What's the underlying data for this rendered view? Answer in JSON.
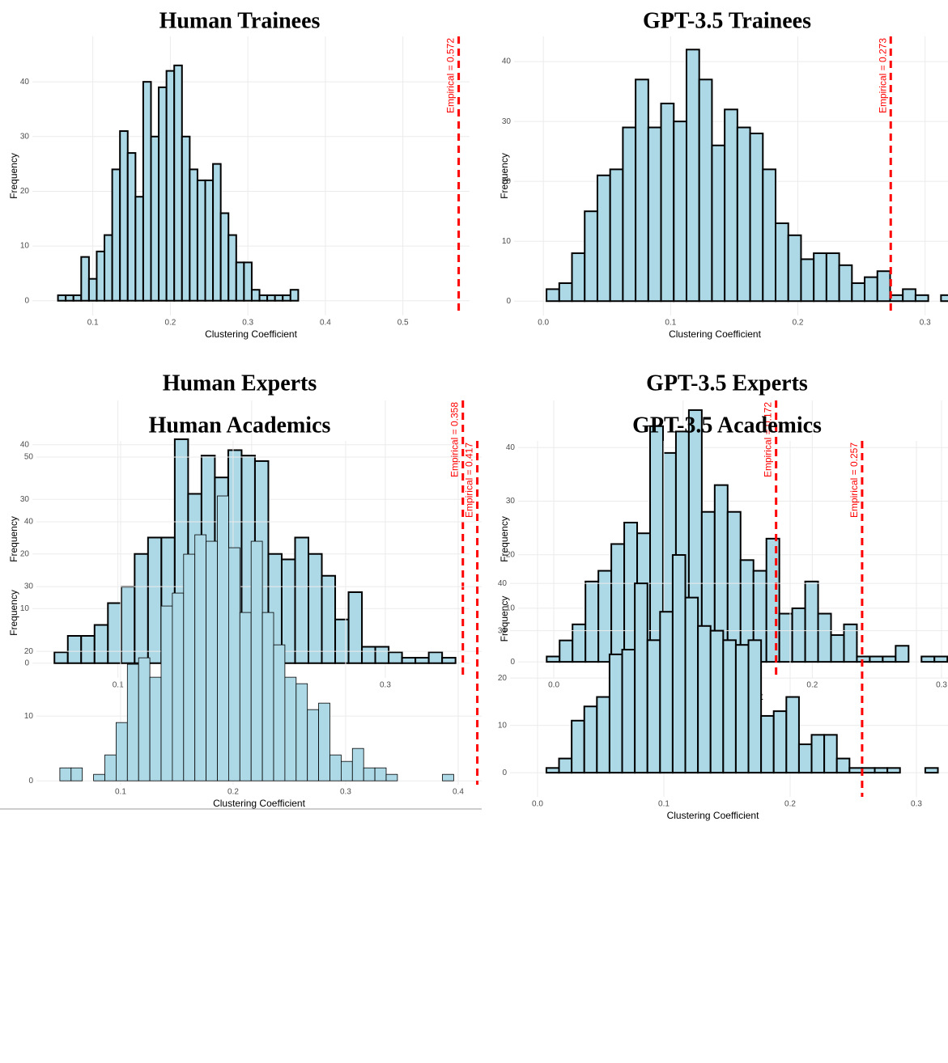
{
  "chart_data": [
    {
      "type": "histogram",
      "title": "Human Trainees",
      "xlabel": "Clustering Coefficient",
      "ylabel": "Frequency",
      "bins": [
        0.055,
        0.065,
        0.075,
        0.085,
        0.095,
        0.105,
        0.115,
        0.125,
        0.135,
        0.145,
        0.155,
        0.165,
        0.175,
        0.185,
        0.195,
        0.205,
        0.215,
        0.225,
        0.235,
        0.245,
        0.255,
        0.265,
        0.275,
        0.285,
        0.295,
        0.305,
        0.315,
        0.325,
        0.335,
        0.345,
        0.355,
        0.365
      ],
      "values": [
        1,
        1,
        1,
        8,
        4,
        9,
        12,
        24,
        31,
        27,
        19,
        40,
        30,
        39,
        42,
        43,
        30,
        24,
        22,
        22,
        25,
        16,
        12,
        7,
        7,
        2,
        1,
        1,
        1,
        1,
        2
      ],
      "color": "#add8e6",
      "edge_color": "#000000",
      "xlim": [
        0.022,
        0.586
      ],
      "ylim": [
        -2.7,
        48.3
      ],
      "xticks": [
        0.1,
        0.2,
        0.3,
        0.4,
        0.5
      ],
      "yticks": [
        0,
        10,
        20,
        30,
        40
      ],
      "grid": true,
      "empirical": {
        "value": 0.572,
        "label": "Empirical = 0.572",
        "color": "#ff0000"
      }
    },
    {
      "type": "histogram",
      "title": "GPT-3.5 Trainees",
      "xlabel": "Clustering Coefficient",
      "ylabel": "Frequency",
      "bins": [
        0.0025,
        0.0125,
        0.0225,
        0.0325,
        0.0425,
        0.0525,
        0.0625,
        0.0725,
        0.0825,
        0.0925,
        0.1025,
        0.1125,
        0.1225,
        0.1325,
        0.1425,
        0.1525,
        0.1625,
        0.1725,
        0.1825,
        0.1925,
        0.2025,
        0.2125,
        0.2225,
        0.2325,
        0.2425,
        0.2525,
        0.2625,
        0.2725,
        0.2825,
        0.2925,
        0.3025,
        0.3125,
        0.3225
      ],
      "values": [
        2,
        3,
        8,
        15,
        21,
        22,
        29,
        37,
        29,
        33,
        30,
        42,
        37,
        26,
        32,
        29,
        28,
        22,
        13,
        11,
        7,
        8,
        8,
        6,
        3,
        4,
        5,
        1,
        2,
        1,
        0,
        1
      ],
      "color": "#add8e6",
      "edge_color": "#000000",
      "xlim": [
        -0.023,
        0.318
      ],
      "ylim": [
        -2.4,
        44.2
      ],
      "xticks": [
        {
          "value": 0,
          "label": "0.0"
        },
        0.1,
        0.2,
        0.3
      ],
      "yticks": [
        0,
        10,
        20,
        30,
        40
      ],
      "grid": true,
      "empirical": {
        "value": 0.273,
        "label": "Empirical = 0.273",
        "color": "#ff0000"
      }
    },
    {
      "type": "histogram",
      "title": "Human Experts",
      "xlabel": "Clustering Coefficient",
      "ylabel": "Frequency",
      "bins": [
        0.0525,
        0.0625,
        0.0725,
        0.0825,
        0.0925,
        0.1025,
        0.1125,
        0.1225,
        0.1325,
        0.1425,
        0.1525,
        0.1625,
        0.1725,
        0.1825,
        0.1925,
        0.2025,
        0.2125,
        0.2225,
        0.2325,
        0.2425,
        0.2525,
        0.2625,
        0.2725,
        0.2825,
        0.2925,
        0.3025,
        0.3125,
        0.3225,
        0.3325,
        0.3425,
        0.3525
      ],
      "values": [
        2,
        5,
        5,
        7,
        11,
        14,
        20,
        23,
        23,
        41,
        31,
        38,
        34,
        39,
        38,
        37,
        20,
        19,
        23,
        20,
        16,
        8,
        13,
        3,
        3,
        2,
        1,
        1,
        2,
        1
      ],
      "color": "#add8e6",
      "edge_color": "#000000",
      "xlim": [
        0.036,
        0.363
      ],
      "ylim": [
        -2.7,
        48.1
      ],
      "xticks": [
        0.1,
        0.2,
        0.3
      ],
      "yticks": [
        0,
        10,
        20,
        30,
        40
      ],
      "grid": true,
      "empirical": {
        "value": 0.358,
        "label": "Empirical = 0.358",
        "color": "#ff0000"
      }
    },
    {
      "type": "histogram",
      "title": "GPT-3.5 Experts",
      "xlabel": "Clustering Coefficient",
      "ylabel": "Frequency",
      "bins": [
        -0.0055,
        0.0045,
        0.0145,
        0.0245,
        0.0345,
        0.0445,
        0.0545,
        0.0645,
        0.0745,
        0.0845,
        0.0945,
        0.1045,
        0.1145,
        0.1245,
        0.1345,
        0.1445,
        0.1545,
        0.1645,
        0.1745,
        0.1845,
        0.1945,
        0.2045,
        0.2145,
        0.2245,
        0.2345,
        0.2445,
        0.2545,
        0.2645,
        0.2745,
        0.2845,
        0.2945,
        0.3045
      ],
      "values": [
        1,
        4,
        7,
        15,
        17,
        22,
        26,
        24,
        44,
        39,
        43,
        47,
        28,
        33,
        28,
        19,
        17,
        23,
        9,
        10,
        15,
        9,
        5,
        7,
        1,
        1,
        1,
        3,
        0,
        1,
        1
      ],
      "color": "#add8e6",
      "edge_color": "#000000",
      "xlim": [
        -0.0276,
        0.305
      ],
      "ylim": [
        -3,
        48.8
      ],
      "xticks": [
        {
          "value": 0,
          "label": "0.0"
        },
        0.1,
        0.2,
        0.3
      ],
      "yticks": [
        0,
        10,
        20,
        30,
        40
      ],
      "grid": true,
      "empirical": {
        "value": 0.172,
        "label": "Empirical = 0.172",
        "color": "#ff0000"
      }
    },
    {
      "type": "histogram",
      "title": "Human Academics",
      "xlabel": "Clustering Coefficient",
      "ylabel": "Frequency",
      "bins": [
        0.046,
        0.056,
        0.066,
        0.076,
        0.086,
        0.096,
        0.106,
        0.116,
        0.126,
        0.136,
        0.146,
        0.156,
        0.166,
        0.176,
        0.186,
        0.196,
        0.206,
        0.216,
        0.226,
        0.236,
        0.246,
        0.256,
        0.266,
        0.276,
        0.286,
        0.296,
        0.306,
        0.316,
        0.326,
        0.336,
        0.346,
        0.356,
        0.366,
        0.376,
        0.386,
        0.396
      ],
      "values": [
        2,
        2,
        0,
        1,
        4,
        9,
        18,
        19,
        16,
        27,
        29,
        35,
        38,
        37,
        44,
        36,
        26,
        37,
        26,
        21,
        16,
        15,
        11,
        12,
        4,
        3,
        5,
        2,
        2,
        1,
        0,
        0,
        0,
        0,
        1
      ],
      "color": "#add8e6",
      "edge_color": "#000000",
      "xlim": [
        0.0252,
        0.4209
      ],
      "ylim": [
        -0.6,
        52.5
      ],
      "xticks": [
        0.1,
        0.2,
        0.3,
        0.4
      ],
      "yticks": [
        0,
        10,
        20,
        30,
        40,
        50
      ],
      "grid": true,
      "empirical": {
        "value": 0.417,
        "label": "Empirical = 0.417",
        "color": "#ff0000"
      }
    },
    {
      "type": "histogram",
      "title": "GPT-3.5 Academics",
      "xlabel": "Clustering Coefficient",
      "ylabel": "Frequency",
      "bins": [
        0.007,
        0.017,
        0.027,
        0.037,
        0.047,
        0.057,
        0.067,
        0.077,
        0.087,
        0.097,
        0.107,
        0.117,
        0.127,
        0.137,
        0.147,
        0.157,
        0.167,
        0.177,
        0.187,
        0.197,
        0.207,
        0.217,
        0.227,
        0.237,
        0.247,
        0.257,
        0.267,
        0.277,
        0.287,
        0.297,
        0.307,
        0.317
      ],
      "values": [
        1,
        3,
        11,
        14,
        16,
        25,
        26,
        40,
        28,
        34,
        46,
        37,
        31,
        30,
        28,
        27,
        28,
        12,
        13,
        16,
        6,
        8,
        8,
        3,
        1,
        1,
        1,
        1,
        0,
        0,
        1
      ],
      "color": "#add8e6",
      "edge_color": "#000000",
      "xlim": [
        -0.0218,
        0.325
      ],
      "ylim": [
        -5.1,
        70.1
      ],
      "xticks": [
        {
          "value": 0,
          "label": "0.0"
        },
        0.1,
        0.2,
        0.3
      ],
      "yticks": [
        0,
        10,
        20,
        30,
        40
      ],
      "grid": true,
      "empirical": {
        "value": 0.257,
        "label": "Empirical = 0.257",
        "color": "#ff0000"
      }
    }
  ]
}
